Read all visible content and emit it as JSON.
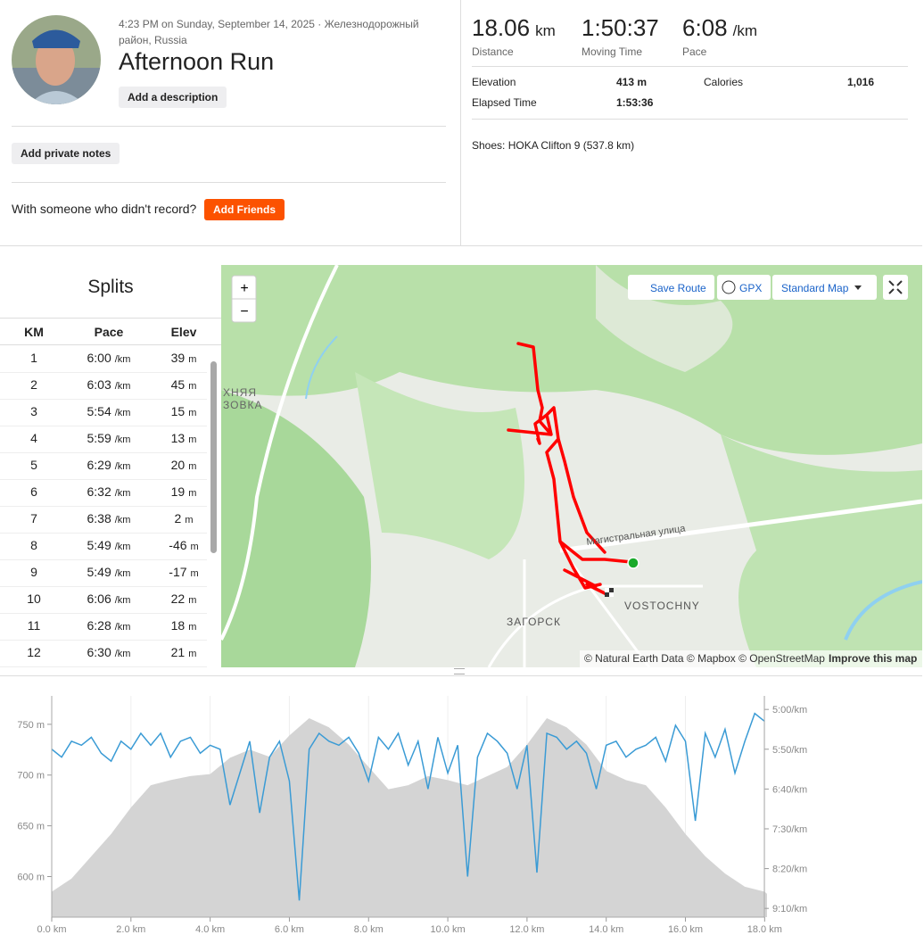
{
  "header": {
    "datetime": "4:23 PM on Sunday, September 14, 2025 · Железнодорожный район, Russia",
    "title": "Afternoon Run",
    "add_description": "Add a description",
    "add_private_notes": "Add private notes",
    "with_someone": "With someone who didn't record?",
    "add_friends": "Add Friends"
  },
  "stats": {
    "primary": [
      {
        "value": "18.06",
        "unit": "km",
        "label": "Distance"
      },
      {
        "value": "1:50:37",
        "label": "Moving Time"
      },
      {
        "value": "6:08",
        "unit": "/km",
        "label": "Pace"
      }
    ],
    "secondary": [
      {
        "label": "Elevation",
        "value": "413 m"
      },
      {
        "label": "Calories",
        "value": "1,016"
      },
      {
        "label": "Elapsed Time",
        "value": "1:53:36"
      }
    ],
    "shoes": "Shoes: HOKA Clifton 9 (537.8 km)"
  },
  "splits": {
    "title": "Splits",
    "columns": [
      "KM",
      "Pace",
      "Elev"
    ],
    "pace_unit": "/km",
    "elev_unit": "m",
    "rows": [
      [
        1,
        "6:00",
        39
      ],
      [
        2,
        "6:03",
        45
      ],
      [
        3,
        "5:54",
        15
      ],
      [
        4,
        "5:59",
        13
      ],
      [
        5,
        "6:29",
        20
      ],
      [
        6,
        "6:32",
        19
      ],
      [
        7,
        "6:38",
        2
      ],
      [
        8,
        "5:49",
        -46
      ],
      [
        9,
        "5:49",
        -17
      ],
      [
        10,
        "6:06",
        22
      ],
      [
        11,
        "6:28",
        18
      ],
      [
        12,
        "6:30",
        21
      ]
    ]
  },
  "map": {
    "zoom_in": "+",
    "zoom_out": "−",
    "save_route": "Save Route",
    "gpx": "GPX",
    "style": "Standard Map",
    "labels": [
      "ХНЯЯ",
      "ЗОВКА",
      "Магистральная улица",
      "VOSTOCHNY",
      "ЗАГОРСК"
    ],
    "attribution": "© Natural Earth Data © Mapbox © OpenStreetMap",
    "improve": "Improve this map"
  },
  "chart_data": {
    "type": "line",
    "xlim": [
      0,
      18.06
    ],
    "xticks": [
      {
        "value": 0,
        "label": "0.0 km"
      },
      {
        "value": 2,
        "label": "2.0 km"
      },
      {
        "value": 4,
        "label": "4.0 km"
      },
      {
        "value": 6,
        "label": "6.0 km"
      },
      {
        "value": 8,
        "label": "8.0 km"
      },
      {
        "value": 10,
        "label": "10.0 km"
      },
      {
        "value": 12,
        "label": "12.0 km"
      },
      {
        "value": 14,
        "label": "14.0 km"
      },
      {
        "value": 16,
        "label": "16.0 km"
      },
      {
        "value": 18,
        "label": "18.0 km"
      }
    ],
    "ylim": [
      560,
      778
    ],
    "yticks": [
      {
        "value": 600,
        "label": "600 m"
      },
      {
        "value": 650,
        "label": "650 m"
      },
      {
        "value": 700,
        "label": "700 m"
      },
      {
        "value": 750,
        "label": "750 m"
      }
    ],
    "y2lim": [
      561,
      283
    ],
    "y2ticks": [
      {
        "value": 300,
        "label": "5:00/km"
      },
      {
        "value": 350,
        "label": "5:50/km"
      },
      {
        "value": 400,
        "label": "6:40/km"
      },
      {
        "value": 450,
        "label": "7:30/km"
      },
      {
        "value": 500,
        "label": "8:20/km"
      },
      {
        "value": 550,
        "label": "9:10/km"
      }
    ],
    "grid": true,
    "series": [
      {
        "name": "Elevation",
        "kind": "area",
        "color": "#d4d4d4",
        "x": [
          0,
          0.5,
          1,
          1.5,
          2,
          2.5,
          3,
          3.5,
          4,
          4.5,
          5,
          5.5,
          6,
          6.5,
          7,
          7.5,
          8,
          8.5,
          9,
          9.5,
          10,
          10.5,
          11,
          11.5,
          12,
          12.5,
          13,
          13.5,
          14,
          14.5,
          15,
          15.5,
          16,
          16.5,
          17,
          17.5,
          18,
          18.06
        ],
        "values": [
          585,
          598,
          620,
          642,
          668,
          690,
          695,
          699,
          701,
          717,
          725,
          718,
          739,
          756,
          747,
          730,
          708,
          686,
          690,
          699,
          695,
          690,
          699,
          708,
          730,
          756,
          747,
          730,
          704,
          695,
          690,
          668,
          642,
          620,
          603,
          590,
          585,
          583
        ]
      },
      {
        "name": "Pace",
        "kind": "line",
        "axis": "y2",
        "color": "#3a9bd5",
        "x": [
          0,
          0.25,
          0.5,
          0.75,
          1,
          1.25,
          1.5,
          1.75,
          2,
          2.25,
          2.5,
          2.75,
          3,
          3.25,
          3.5,
          3.75,
          4,
          4.25,
          4.5,
          4.75,
          5,
          5.25,
          5.5,
          5.75,
          6,
          6.25,
          6.5,
          6.75,
          7,
          7.25,
          7.5,
          7.75,
          8,
          8.25,
          8.5,
          8.75,
          9,
          9.25,
          9.5,
          9.75,
          10,
          10.25,
          10.5,
          10.75,
          11,
          11.25,
          11.5,
          11.75,
          12,
          12.25,
          12.5,
          12.75,
          13,
          13.25,
          13.5,
          13.75,
          14,
          14.25,
          14.5,
          14.75,
          15,
          15.25,
          15.5,
          15.75,
          16,
          16.25,
          16.5,
          16.75,
          17,
          17.25,
          17.5,
          17.75,
          18
        ],
        "values": [
          350,
          360,
          340,
          345,
          335,
          355,
          365,
          340,
          350,
          330,
          345,
          330,
          360,
          340,
          335,
          355,
          345,
          350,
          420,
          380,
          340,
          430,
          360,
          340,
          390,
          540,
          350,
          330,
          340,
          345,
          335,
          355,
          390,
          335,
          350,
          330,
          370,
          340,
          400,
          335,
          380,
          345,
          510,
          360,
          330,
          340,
          355,
          400,
          345,
          505,
          330,
          335,
          350,
          340,
          355,
          400,
          345,
          340,
          360,
          350,
          345,
          335,
          365,
          320,
          340,
          440,
          330,
          360,
          325,
          380,
          340,
          305,
          315
        ]
      }
    ]
  }
}
